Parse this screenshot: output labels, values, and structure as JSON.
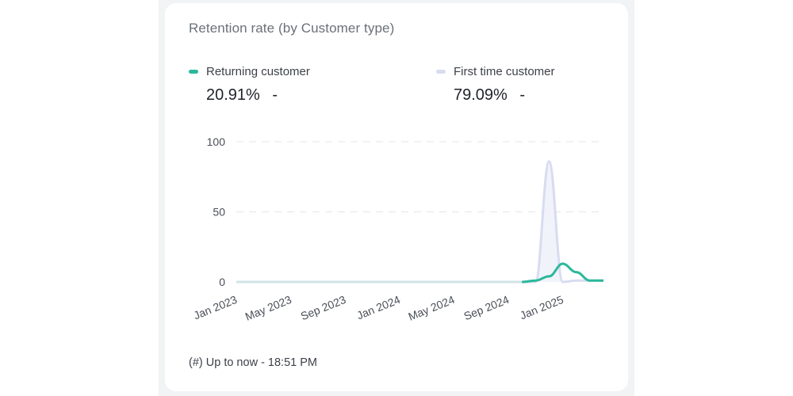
{
  "card": {
    "title": "Retention rate (by Customer type)",
    "footnote": "(#) Up to now - 18:51 PM"
  },
  "legend": [
    {
      "name": "Returning customer",
      "value": "20.91%",
      "delta": "-",
      "color": "#2bb89a"
    },
    {
      "name": "First time customer",
      "value": "79.09%",
      "delta": "-",
      "color": "#d8dcf0"
    }
  ],
  "chart_data": {
    "type": "area",
    "x_tick_labels": [
      "Jan 2023",
      "May 2023",
      "Sep 2023",
      "Jan 2024",
      "May 2024",
      "Sep 2024",
      "Jan 2025"
    ],
    "y_tick_labels": [
      "0",
      "50",
      "100"
    ],
    "ylim": [
      0,
      100
    ],
    "grid": true,
    "x": [
      "2023-01",
      "2023-02",
      "2023-03",
      "2023-04",
      "2023-05",
      "2023-06",
      "2023-07",
      "2023-08",
      "2023-09",
      "2023-10",
      "2023-11",
      "2023-12",
      "2024-01",
      "2024-02",
      "2024-03",
      "2024-04",
      "2024-05",
      "2024-06",
      "2024-07",
      "2024-08",
      "2024-09",
      "2024-10",
      "2024-11",
      "2024-12",
      "2025-01",
      "2025-02",
      "2025-03",
      "2025-04"
    ],
    "series": [
      {
        "name": "Returning customer",
        "color": "#2bb89a",
        "values": [
          0,
          0,
          0,
          0,
          0,
          0,
          0,
          0,
          0,
          0,
          0,
          0,
          0,
          0,
          0,
          0,
          0,
          0,
          0,
          0,
          0,
          0,
          1,
          4,
          13,
          7,
          1,
          1
        ]
      },
      {
        "name": "First time customer",
        "color": "#d8dcf0",
        "values": [
          0,
          0,
          0,
          0,
          0,
          0,
          0,
          0,
          0,
          0,
          0,
          0,
          0,
          0,
          0,
          0,
          0,
          0,
          0,
          0,
          0,
          0,
          0,
          86,
          0,
          1,
          1,
          1
        ]
      }
    ]
  }
}
